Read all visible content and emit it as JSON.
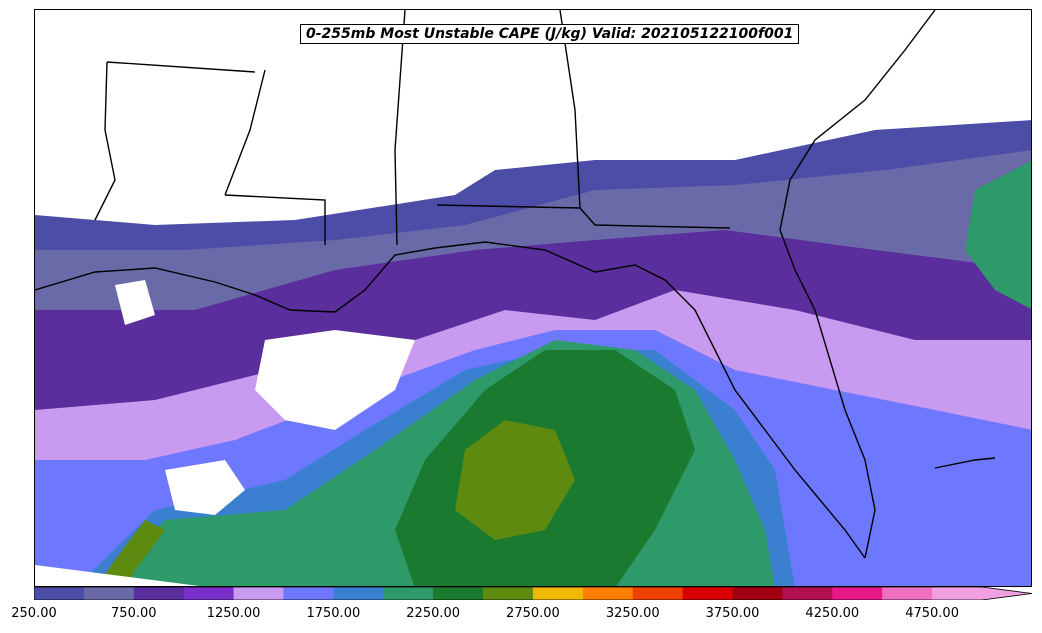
{
  "title": "0-255mb Most Unstable CAPE (J/kg) Valid: 202105122100f001",
  "legend": {
    "levels": [
      250,
      500,
      750,
      1000,
      1250,
      1500,
      1750,
      2000,
      2250,
      2500,
      2750,
      3000,
      3250,
      3500,
      3750,
      4000,
      4250,
      4500,
      4750,
      5000
    ],
    "colors": [
      "#4b4da6",
      "#6a6aa8",
      "#5a2e9c",
      "#7a30c8",
      "#c89af0",
      "#6e78ff",
      "#3a7fd0",
      "#2e9a6a",
      "#1a7a30",
      "#5f8a10",
      "#f0b800",
      "#ff8000",
      "#f04000",
      "#d80000",
      "#a00010",
      "#b01050",
      "#e81888",
      "#f070c0",
      "#f0a0e0"
    ],
    "tick_labels": [
      "250.00",
      "750.00",
      "1250.00",
      "1750.00",
      "2250.00",
      "2750.00",
      "3250.00",
      "3750.00",
      "4250.00",
      "4750.00"
    ]
  }
}
